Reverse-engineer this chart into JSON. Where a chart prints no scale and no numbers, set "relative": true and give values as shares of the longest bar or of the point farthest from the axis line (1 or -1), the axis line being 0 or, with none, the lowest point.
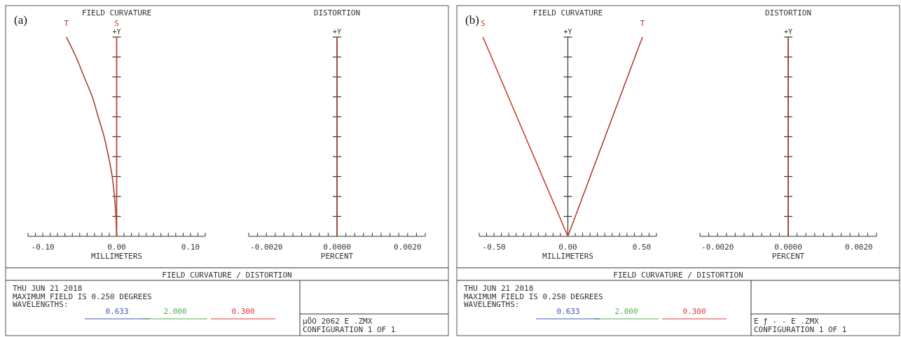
{
  "chart_data": [
    {
      "type": "line",
      "title": "FIELD CURVATURE",
      "xlabel": "MILLIMETERS",
      "ylabel": "+Y",
      "relative": true,
      "xlim": [
        -0.12,
        0.12
      ],
      "xticks": [
        {
          "value": -0.12,
          "label": null
        },
        {
          "value": -0.11,
          "label": null
        },
        {
          "value": -0.1,
          "label": "-0.10"
        },
        {
          "value": -0.09,
          "label": null
        },
        {
          "value": -0.08,
          "label": null
        },
        {
          "value": -0.07,
          "label": null
        },
        {
          "value": -0.06,
          "label": null
        },
        {
          "value": -0.05,
          "label": null
        },
        {
          "value": -0.04,
          "label": null
        },
        {
          "value": -0.03,
          "label": null
        },
        {
          "value": -0.02,
          "label": null
        },
        {
          "value": -0.01,
          "label": null
        },
        {
          "value": 0,
          "label": "0.00"
        },
        {
          "value": 0.01,
          "label": null
        },
        {
          "value": 0.02,
          "label": null
        },
        {
          "value": 0.03,
          "label": null
        },
        {
          "value": 0.04,
          "label": null
        },
        {
          "value": 0.05,
          "label": null
        },
        {
          "value": 0.06,
          "label": null
        },
        {
          "value": 0.07,
          "label": null
        },
        {
          "value": 0.08,
          "label": null
        },
        {
          "value": 0.09,
          "label": null
        },
        {
          "value": 0.1,
          "label": "0.10"
        },
        {
          "value": 0.11,
          "label": null
        },
        {
          "value": 0.12,
          "label": null
        }
      ],
      "series": [
        {
          "name": "T",
          "color": "#a8442f",
          "x": [
            0,
            -0.001,
            -0.003,
            -0.006,
            -0.011,
            -0.017,
            -0.025,
            -0.033,
            -0.044,
            -0.055,
            -0.068
          ],
          "values": [
            0,
            0.1,
            0.2,
            0.3,
            0.4,
            0.5,
            0.6,
            0.7,
            0.8,
            0.9,
            1
          ]
        },
        {
          "name": "S",
          "color": "#c8412c",
          "x": [
            0,
            0
          ],
          "values": [
            0,
            1
          ]
        }
      ],
      "annotations": [
        "(a)",
        "FIELD CURVATURE / DISTORTION",
        "THU JUN 21 2018",
        "MAXIMUM FIELD IS 0.250 DEGREES",
        "WAVELENGTHS:",
        "0.633",
        "2.000",
        "0.300",
        "µÖO     2062  E .ZMX",
        "CONFIGURATION 1 OF 1"
      ]
    },
    {
      "type": "line",
      "title": "DISTORTION",
      "xlabel": "PERCENT",
      "ylabel": "+Y",
      "relative": true,
      "xlim": [
        -0.0025,
        0.0025
      ],
      "xticks": [
        {
          "value": -0.0025,
          "label": null
        },
        {
          "value": -0.00225,
          "label": null
        },
        {
          "value": -0.002,
          "label": "-0.0020"
        },
        {
          "value": -0.00175,
          "label": null
        },
        {
          "value": -0.0015,
          "label": null
        },
        {
          "value": -0.00125,
          "label": null
        },
        {
          "value": -0.001,
          "label": null
        },
        {
          "value": -0.00075,
          "label": null
        },
        {
          "value": -0.0005,
          "label": null
        },
        {
          "value": -0.00025,
          "label": null
        },
        {
          "value": 0,
          "label": "0.0000"
        },
        {
          "value": 0.00025,
          "label": null
        },
        {
          "value": 0.0005,
          "label": null
        },
        {
          "value": 0.00075,
          "label": null
        },
        {
          "value": 0.001,
          "label": null
        },
        {
          "value": 0.00125,
          "label": null
        },
        {
          "value": 0.0015,
          "label": null
        },
        {
          "value": 0.00175,
          "label": null
        },
        {
          "value": 0.002,
          "label": "0.0020"
        },
        {
          "value": 0.00225,
          "label": null
        },
        {
          "value": 0.0025,
          "label": null
        }
      ],
      "series": [
        {
          "color": "#a8442f",
          "x": [
            0,
            0
          ],
          "values": [
            0,
            1
          ]
        }
      ]
    },
    {
      "type": "line",
      "title": "FIELD CURVATURE",
      "xlabel": "MILLIMETERS",
      "ylabel": "+Y",
      "relative": true,
      "xlim": [
        -0.6,
        0.6
      ],
      "xticks": [
        {
          "value": -0.6,
          "label": null
        },
        {
          "value": -0.55,
          "label": null
        },
        {
          "value": -0.5,
          "label": "-0.50"
        },
        {
          "value": -0.45,
          "label": null
        },
        {
          "value": -0.4,
          "label": null
        },
        {
          "value": -0.35,
          "label": null
        },
        {
          "value": -0.3,
          "label": null
        },
        {
          "value": -0.25,
          "label": null
        },
        {
          "value": -0.2,
          "label": null
        },
        {
          "value": -0.15,
          "label": null
        },
        {
          "value": -0.1,
          "label": null
        },
        {
          "value": -0.05,
          "label": null
        },
        {
          "value": 0,
          "label": "0.00"
        },
        {
          "value": 0.05,
          "label": null
        },
        {
          "value": 0.1,
          "label": null
        },
        {
          "value": 0.15,
          "label": null
        },
        {
          "value": 0.2,
          "label": null
        },
        {
          "value": 0.25,
          "label": null
        },
        {
          "value": 0.3,
          "label": null
        },
        {
          "value": 0.35,
          "label": null
        },
        {
          "value": 0.4,
          "label": null
        },
        {
          "value": 0.45,
          "label": null
        },
        {
          "value": 0.5,
          "label": "0.50"
        },
        {
          "value": 0.55,
          "label": null
        },
        {
          "value": 0.6,
          "label": null
        }
      ],
      "series": [
        {
          "name": "S",
          "color": "#c8412c",
          "x": [
            0,
            -0.575
          ],
          "values": [
            0,
            1
          ]
        },
        {
          "name": "T",
          "color": "#a8442f",
          "x": [
            0,
            0.505
          ],
          "values": [
            0,
            1
          ]
        }
      ],
      "annotations": [
        "(b)",
        "FIELD CURVATURE / DISTORTION",
        "THU JUN 21 2018",
        "MAXIMUM FIELD IS 0.250 DEGREES",
        "WAVELENGTHS:",
        "0.633",
        "2.000",
        "0.300",
        "E ƒ        -        - E .ZMX",
        "CONFIGURATION 1 OF 1"
      ]
    },
    {
      "type": "line",
      "title": "DISTORTION",
      "xlabel": "PERCENT",
      "ylabel": "+Y",
      "relative": true,
      "xlim": [
        -0.0025,
        0.0025
      ],
      "xticks": [
        {
          "value": -0.0025,
          "label": null
        },
        {
          "value": -0.00225,
          "label": null
        },
        {
          "value": -0.002,
          "label": "-0.0020"
        },
        {
          "value": -0.00175,
          "label": null
        },
        {
          "value": -0.0015,
          "label": null
        },
        {
          "value": -0.00125,
          "label": null
        },
        {
          "value": -0.001,
          "label": null
        },
        {
          "value": -0.00075,
          "label": null
        },
        {
          "value": -0.0005,
          "label": null
        },
        {
          "value": -0.00025,
          "label": null
        },
        {
          "value": 0,
          "label": "0.0000"
        },
        {
          "value": 0.00025,
          "label": null
        },
        {
          "value": 0.0005,
          "label": null
        },
        {
          "value": 0.00075,
          "label": null
        },
        {
          "value": 0.001,
          "label": null
        },
        {
          "value": 0.00125,
          "label": null
        },
        {
          "value": 0.0015,
          "label": null
        },
        {
          "value": 0.00175,
          "label": null
        },
        {
          "value": 0.002,
          "label": "0.0020"
        },
        {
          "value": 0.00225,
          "label": null
        },
        {
          "value": 0.0025,
          "label": null
        }
      ],
      "series": [
        {
          "color": "#a8442f",
          "x": [
            0,
            0
          ],
          "values": [
            0,
            1
          ]
        }
      ]
    }
  ]
}
